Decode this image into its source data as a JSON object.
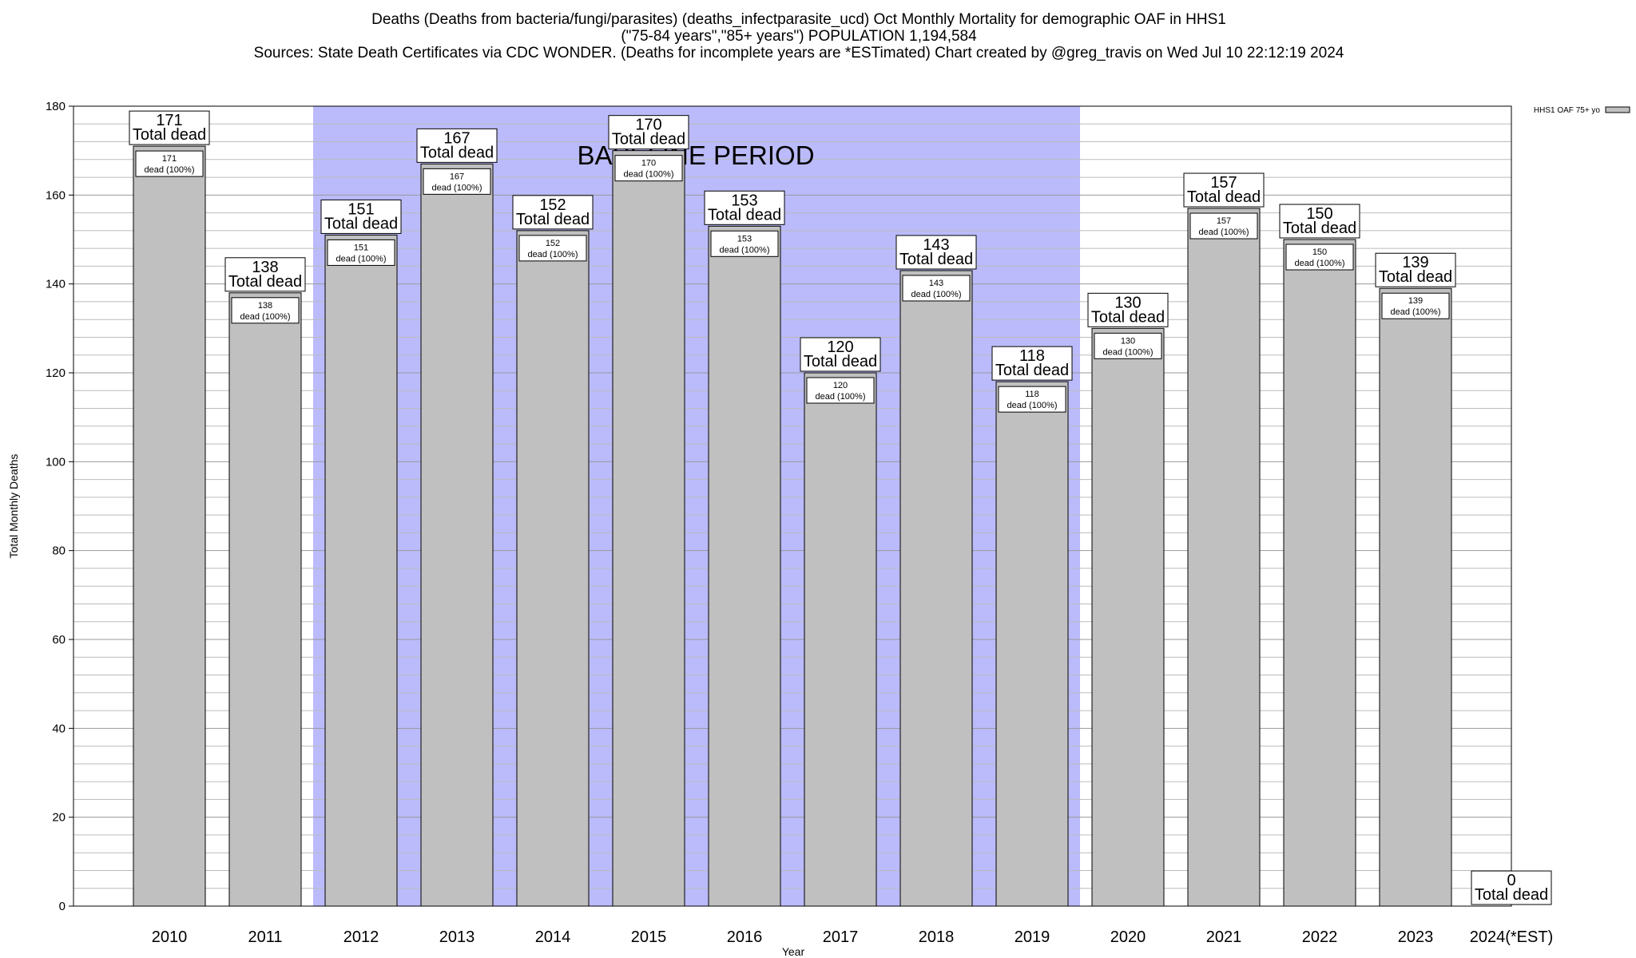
{
  "header": {
    "title_line1": "Deaths (Deaths from bacteria/fungi/parasites) (deaths_infectparasite_ucd) Oct Monthly Mortality for demographic OAF in HHS1",
    "title_line2": "(\"75-84 years\",\"85+ years\") POPULATION 1,194,584",
    "title_line3": "Sources: State Death Certificates via CDC WONDER. (Deaths for incomplete years are *ESTimated)                Chart created by @greg_travis on Wed Jul 10 22:12:19 2024"
  },
  "chart_data": {
    "type": "bar",
    "xlabel": "Year",
    "ylabel": "Total Monthly Deaths",
    "ylim": [
      0,
      180
    ],
    "y_ticks": [
      0,
      20,
      40,
      60,
      80,
      100,
      120,
      140,
      160,
      180
    ],
    "y_minor_step": 4,
    "grid": true,
    "legend": {
      "label": "HHS1 OAF 75+ yo",
      "position": "top-right"
    },
    "categories": [
      "2010",
      "2011",
      "2012",
      "2013",
      "2014",
      "2015",
      "2016",
      "2017",
      "2018",
      "2019",
      "2020",
      "2021",
      "2022",
      "2023",
      "2024(*EST)"
    ],
    "series": [
      {
        "name": "HHS1 OAF 75+ yo",
        "values": [
          171,
          138,
          151,
          167,
          152,
          170,
          153,
          120,
          143,
          118,
          130,
          157,
          150,
          139,
          0
        ]
      }
    ],
    "baseline_period": {
      "label": "BASELINE PERIOD",
      "from": "2012",
      "to": "2019"
    },
    "annotation_total_suffix": "Total dead",
    "annotation_inner_suffix": "dead (100%)",
    "colors": {
      "bar": "#c0c0c0",
      "baseline": "#bbbbfb",
      "grid": "#bbbbbb"
    }
  }
}
